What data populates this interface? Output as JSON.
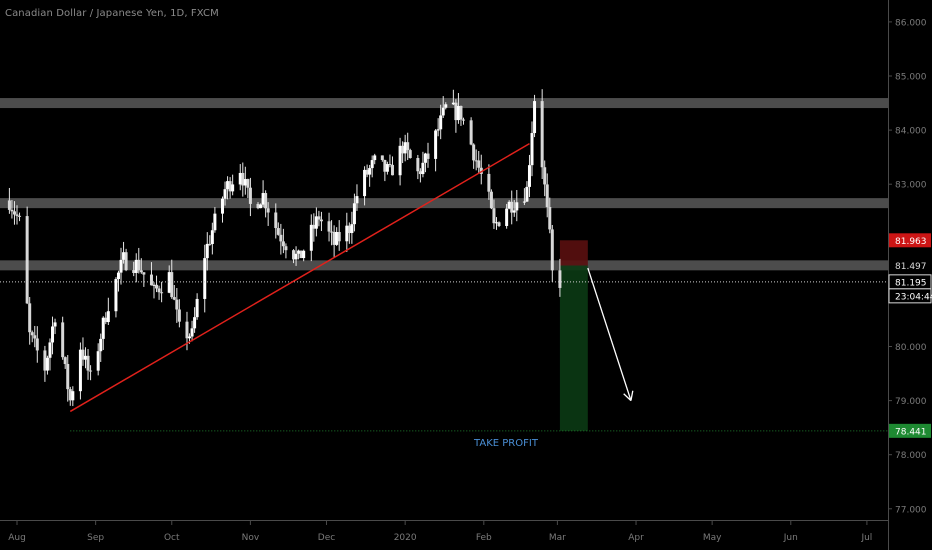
{
  "header": {
    "title": "Canadian Dollar / Japanese Yen, 1D, FXCM"
  },
  "chart_data": {
    "type": "candlestick",
    "title": "Canadian Dollar / Japanese Yen, 1D, FXCM",
    "y_ticks": [
      "86.000",
      "85.000",
      "84.000",
      "83.000",
      "82.000",
      "81.000",
      "80.000",
      "79.000",
      "78.000",
      "77.000"
    ],
    "ylim": [
      76.6,
      86.4
    ],
    "x_ticks": [
      "Aug",
      "Sep",
      "Oct",
      "Nov",
      "Dec",
      "2020",
      "Feb",
      "Mar",
      "Apr",
      "May",
      "Jun",
      "Jul"
    ],
    "price_labels": {
      "stop_loss": "81.963",
      "entry": "81.497",
      "current_price": "81.195",
      "countdown": "23:04:44",
      "take_profit": "78.441"
    },
    "annotations": {
      "take_profit_text": "TAKE PROFIT"
    },
    "resistance_zones": [
      84.5,
      82.65,
      81.5
    ],
    "trendline": {
      "from": {
        "date": "2019-08-22",
        "price": 78.8
      },
      "to": {
        "date": "2020-02-19",
        "price": 83.75
      }
    },
    "position": {
      "entry": 81.497,
      "stop": 81.963,
      "target": 78.441,
      "start": "2020-03-02",
      "end": "2020-03-13"
    },
    "arrow": {
      "from": {
        "date": "2020-03-13",
        "price": 81.45
      },
      "to": {
        "date": "2020-03-30",
        "price": 79.0
      }
    },
    "path_points": [
      [
        "2019-07-29",
        82.7
      ],
      [
        "2019-08-02",
        82.3
      ],
      [
        "2019-08-06",
        80.2
      ],
      [
        "2019-08-12",
        79.6
      ],
      [
        "2019-08-16",
        80.6
      ],
      [
        "2019-08-22",
        79.0
      ],
      [
        "2019-08-26",
        80.0
      ],
      [
        "2019-08-30",
        79.4
      ],
      [
        "2019-09-06",
        80.8
      ],
      [
        "2019-09-12",
        81.6
      ],
      [
        "2019-09-18",
        81.5
      ],
      [
        "2019-09-24",
        81.0
      ],
      [
        "2019-09-30",
        81.3
      ],
      [
        "2019-10-04",
        80.3
      ],
      [
        "2019-10-09",
        80.2
      ],
      [
        "2019-10-14",
        81.7
      ],
      [
        "2019-10-22",
        82.9
      ],
      [
        "2019-10-28",
        83.3
      ],
      [
        "2019-11-01",
        82.6
      ],
      [
        "2019-11-06",
        82.8
      ],
      [
        "2019-11-12",
        82.1
      ],
      [
        "2019-11-20",
        81.6
      ],
      [
        "2019-11-28",
        82.4
      ],
      [
        "2019-12-04",
        81.9
      ],
      [
        "2019-12-10",
        82.2
      ],
      [
        "2019-12-14",
        83.0
      ],
      [
        "2019-12-20",
        83.4
      ],
      [
        "2019-12-26",
        83.2
      ],
      [
        "2019-12-31",
        83.7
      ],
      [
        "2020-01-06",
        83.2
      ],
      [
        "2020-01-10",
        83.5
      ],
      [
        "2020-01-17",
        84.4
      ],
      [
        "2020-01-23",
        84.3
      ],
      [
        "2020-01-28",
        83.6
      ],
      [
        "2020-02-03",
        82.7
      ],
      [
        "2020-02-05",
        82.2
      ],
      [
        "2020-02-10",
        82.6
      ],
      [
        "2020-02-14",
        82.7
      ],
      [
        "2020-02-18",
        82.9
      ],
      [
        "2020-02-21",
        84.6
      ],
      [
        "2020-02-24",
        83.4
      ],
      [
        "2020-02-27",
        82.0
      ],
      [
        "2020-03-01",
        80.0
      ],
      [
        "2020-03-02",
        81.2
      ]
    ]
  }
}
